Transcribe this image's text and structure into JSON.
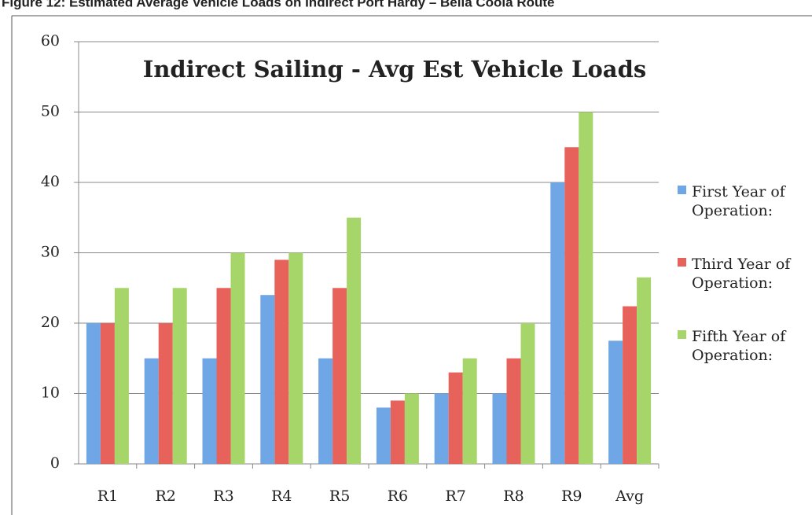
{
  "caption": "Figure 12: Estimated Average Vehicle Loads on Indirect Port Hardy – Bella Coola Route",
  "chart_data": {
    "type": "bar",
    "title": "Indirect Sailing - Avg Est Vehicle Loads",
    "categories": [
      "R1",
      "R2",
      "R3",
      "R4",
      "R5",
      "R6",
      "R7",
      "R8",
      "R9",
      "Avg"
    ],
    "series": [
      {
        "name": "First Year of Operation:",
        "color": "#6fa6e6",
        "values": [
          20,
          15,
          15,
          24,
          15,
          8,
          10,
          10,
          40,
          17.5
        ]
      },
      {
        "name": "Third Year of Operation:",
        "color": "#e8625c",
        "values": [
          20,
          20,
          25,
          29,
          25,
          9,
          13,
          15,
          45,
          22.4
        ]
      },
      {
        "name": "Fifth Year of Operation:",
        "color": "#a6d66a",
        "values": [
          25,
          25,
          30,
          30,
          35,
          10,
          15,
          20,
          50,
          26.5
        ]
      }
    ],
    "ylim": [
      0,
      60
    ],
    "yticks": [
      0,
      10,
      20,
      30,
      40,
      50,
      60
    ],
    "grid": true,
    "legend": "right"
  }
}
